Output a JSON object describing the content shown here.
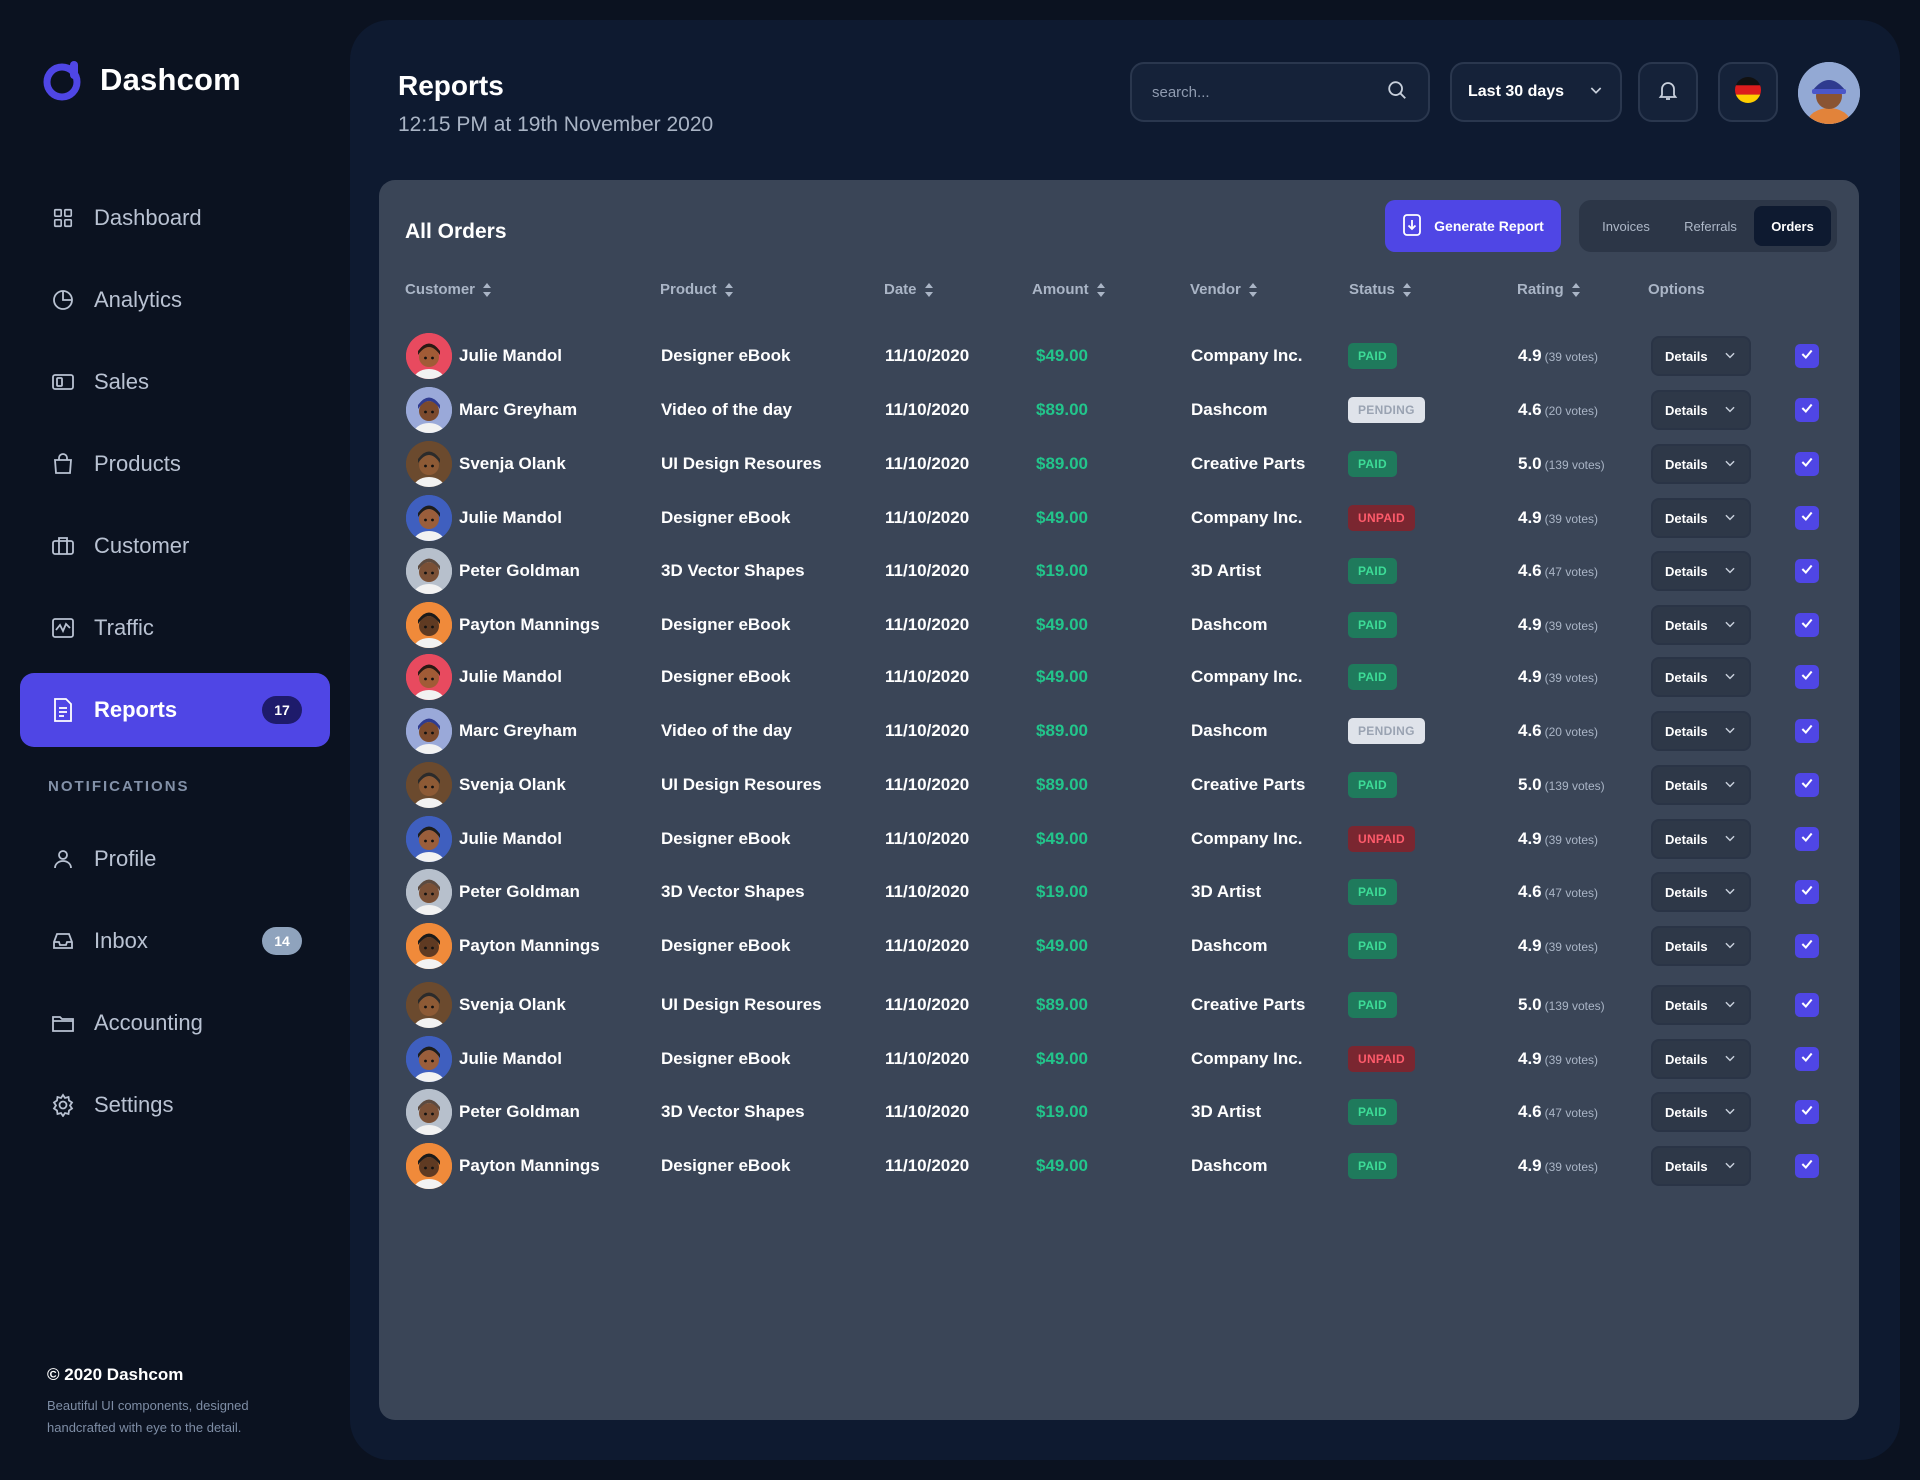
{
  "app": {
    "name": "Dashcom"
  },
  "sidebar": {
    "items": [
      {
        "label": "Dashboard",
        "icon": "grid-icon"
      },
      {
        "label": "Analytics",
        "icon": "pie-chart-icon"
      },
      {
        "label": "Sales",
        "icon": "wallet-icon"
      },
      {
        "label": "Products",
        "icon": "shopping-bag-icon"
      },
      {
        "label": "Customer",
        "icon": "briefcase-icon"
      },
      {
        "label": "Traffic",
        "icon": "activity-icon"
      },
      {
        "label": "Reports",
        "icon": "document-icon",
        "badge": "17",
        "active": true
      }
    ],
    "section_label": "NOTIFICATIONS",
    "notif_items": [
      {
        "label": "Profile",
        "icon": "user-icon"
      },
      {
        "label": "Inbox",
        "icon": "inbox-icon",
        "badge": "14"
      },
      {
        "label": "Accounting",
        "icon": "folder-icon"
      },
      {
        "label": "Settings",
        "icon": "gear-icon"
      }
    ],
    "footer": {
      "title": "© 2020 Dashcom",
      "subtitle": "Beautiful UI components, designed handcrafted with eye to the detail."
    }
  },
  "header": {
    "title": "Reports",
    "subtitle": "12:15 PM at 19th November 2020",
    "search_placeholder": "search...",
    "range_label": "Last 30 days"
  },
  "card": {
    "title": "All Orders",
    "generate_label": "Generate Report",
    "tabs": [
      "Invoices",
      "Referrals",
      "Orders"
    ],
    "active_tab": "Orders"
  },
  "table": {
    "columns": [
      "Customer",
      "Product",
      "Date",
      "Amount",
      "Vendor",
      "Status",
      "Rating",
      "Options"
    ],
    "details_label": "Details",
    "rows": [
      {
        "customer": "Julie Mandol",
        "avatar": "red",
        "product": "Designer eBook",
        "date": "11/10/2020",
        "amount": "$49.00",
        "vendor": "Company Inc.",
        "status": "PAID",
        "rating": "4.9",
        "votes": "(39 votes)"
      },
      {
        "customer": "Marc Greyham",
        "avatar": "lavender",
        "product": "Video of the day",
        "date": "11/10/2020",
        "amount": "$89.00",
        "vendor": "Dashcom",
        "status": "PENDING",
        "rating": "4.6",
        "votes": "(20 votes)"
      },
      {
        "customer": "Svenja Olank",
        "avatar": "brown",
        "product": "UI Design Resoures",
        "date": "11/10/2020",
        "amount": "$89.00",
        "vendor": "Creative Parts",
        "status": "PAID",
        "rating": "5.0",
        "votes": "(139 votes)"
      },
      {
        "customer": "Julie Mandol",
        "avatar": "blue",
        "product": "Designer eBook",
        "date": "11/10/2020",
        "amount": "$49.00",
        "vendor": "Company Inc.",
        "status": "UNPAID",
        "rating": "4.9",
        "votes": "(39 votes)"
      },
      {
        "customer": "Peter Goldman",
        "avatar": "grey",
        "product": "3D Vector Shapes",
        "date": "11/10/2020",
        "amount": "$19.00",
        "vendor": "3D Artist",
        "status": "PAID",
        "rating": "4.6",
        "votes": "(47 votes)"
      },
      {
        "customer": "Payton Mannings",
        "avatar": "orange",
        "product": "Designer eBook",
        "date": "11/10/2020",
        "amount": "$49.00",
        "vendor": "Dashcom",
        "status": "PAID",
        "rating": "4.9",
        "votes": "(39 votes)"
      },
      {
        "customer": "Julie Mandol",
        "avatar": "red",
        "product": "Designer eBook",
        "date": "11/10/2020",
        "amount": "$49.00",
        "vendor": "Company Inc.",
        "status": "PAID",
        "rating": "4.9",
        "votes": "(39 votes)"
      },
      {
        "customer": "Marc Greyham",
        "avatar": "lavender",
        "product": "Video of the day",
        "date": "11/10/2020",
        "amount": "$89.00",
        "vendor": "Dashcom",
        "status": "PENDING",
        "rating": "4.6",
        "votes": "(20 votes)"
      },
      {
        "customer": "Svenja Olank",
        "avatar": "brown",
        "product": "UI Design Resoures",
        "date": "11/10/2020",
        "amount": "$89.00",
        "vendor": "Creative Parts",
        "status": "PAID",
        "rating": "5.0",
        "votes": "(139 votes)"
      },
      {
        "customer": "Julie Mandol",
        "avatar": "blue",
        "product": "Designer eBook",
        "date": "11/10/2020",
        "amount": "$49.00",
        "vendor": "Company Inc.",
        "status": "UNPAID",
        "rating": "4.9",
        "votes": "(39 votes)"
      },
      {
        "customer": "Peter Goldman",
        "avatar": "grey",
        "product": "3D Vector Shapes",
        "date": "11/10/2020",
        "amount": "$19.00",
        "vendor": "3D Artist",
        "status": "PAID",
        "rating": "4.6",
        "votes": "(47 votes)"
      },
      {
        "customer": "Payton Mannings",
        "avatar": "orange",
        "product": "Designer eBook",
        "date": "11/10/2020",
        "amount": "$49.00",
        "vendor": "Dashcom",
        "status": "PAID",
        "rating": "4.9",
        "votes": "(39 votes)"
      },
      {
        "customer": "Svenja Olank",
        "avatar": "brown",
        "product": "UI Design Resoures",
        "date": "11/10/2020",
        "amount": "$89.00",
        "vendor": "Creative Parts",
        "status": "PAID",
        "rating": "5.0",
        "votes": "(139 votes)"
      },
      {
        "customer": "Julie Mandol",
        "avatar": "blue",
        "product": "Designer eBook",
        "date": "11/10/2020",
        "amount": "$49.00",
        "vendor": "Company Inc.",
        "status": "UNPAID",
        "rating": "4.9",
        "votes": "(39 votes)"
      },
      {
        "customer": "Peter Goldman",
        "avatar": "grey",
        "product": "3D Vector Shapes",
        "date": "11/10/2020",
        "amount": "$19.00",
        "vendor": "3D Artist",
        "status": "PAID",
        "rating": "4.6",
        "votes": "(47 votes)"
      },
      {
        "customer": "Payton Mannings",
        "avatar": "orange",
        "product": "Designer eBook",
        "date": "11/10/2020",
        "amount": "$49.00",
        "vendor": "Dashcom",
        "status": "PAID",
        "rating": "4.9",
        "votes": "(39 votes)"
      }
    ]
  },
  "colors": {
    "accent": "#4f46e5",
    "amount": "#22c58b",
    "paid_bg": "#1f7a5c",
    "paid_text": "#3ddc97",
    "pending_bg": "#dfe3ea",
    "pending_text": "#9aa3b2",
    "unpaid_bg": "#7a2630",
    "unpaid_text": "#ff5b6b"
  }
}
